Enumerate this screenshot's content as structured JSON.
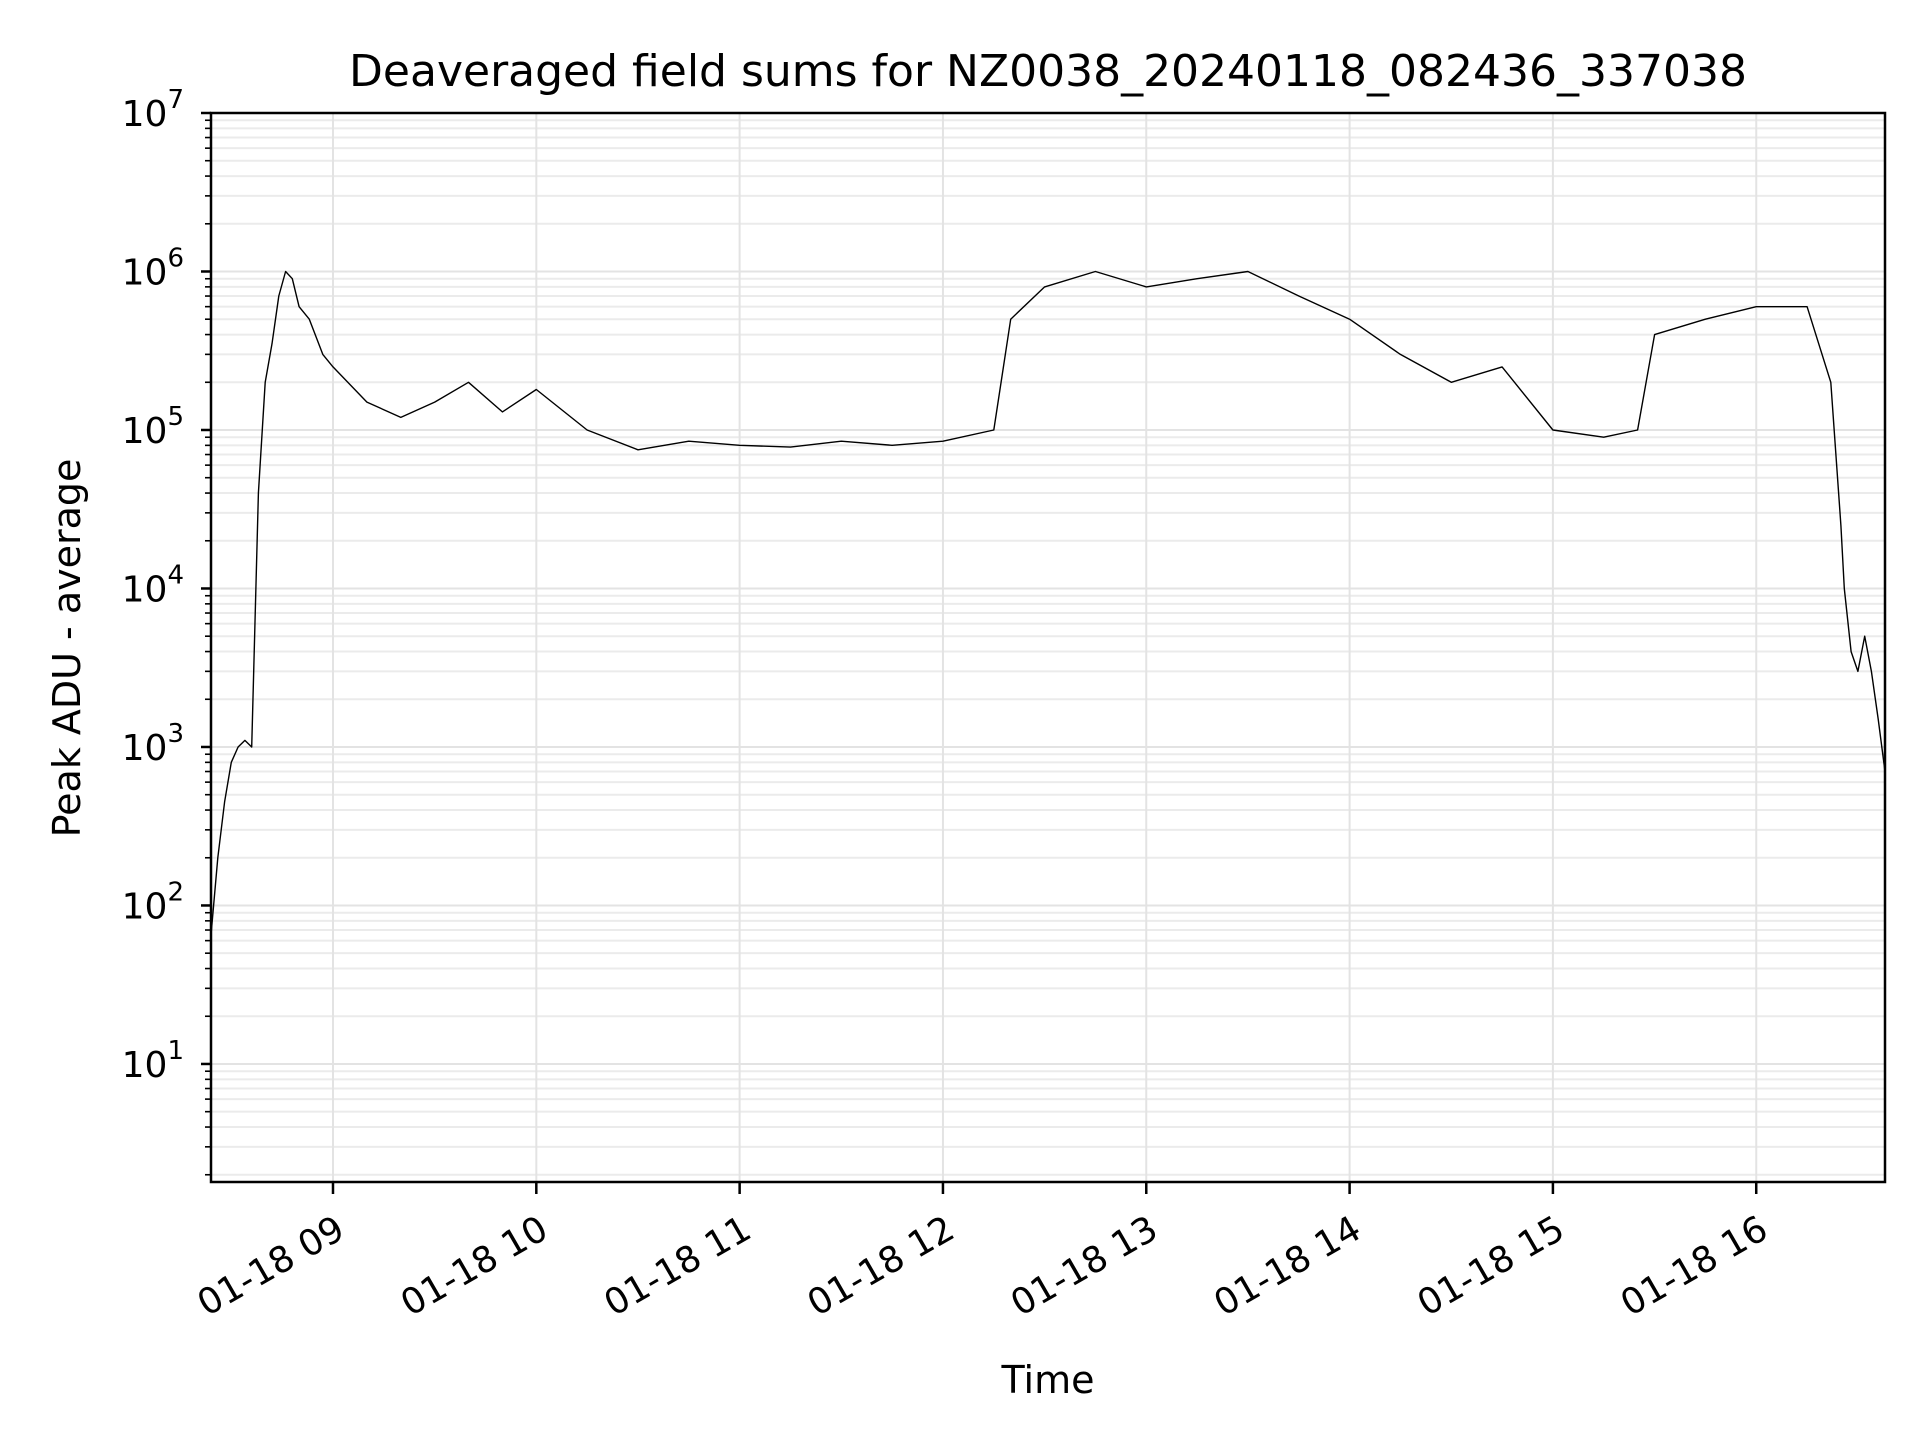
{
  "chart_data": {
    "type": "line",
    "title": "Deaveraged field sums for NZ0038_20240118_082436_337038",
    "xlabel": "Time",
    "ylabel": "Peak ADU - average",
    "yscale": "log",
    "ylim": [
      1.8,
      10000000
    ],
    "xlim": [
      "2024-01-18 08:24",
      "2024-01-18 16:38"
    ],
    "x_ticks": [
      "01-18 09",
      "01-18 10",
      "01-18 11",
      "01-18 12",
      "01-18 13",
      "01-18 14",
      "01-18 15",
      "01-18 16"
    ],
    "y_ticks": [
      {
        "base": "10",
        "exp": "1",
        "value": 10
      },
      {
        "base": "10",
        "exp": "2",
        "value": 100
      },
      {
        "base": "10",
        "exp": "3",
        "value": 1000
      },
      {
        "base": "10",
        "exp": "4",
        "value": 10000
      },
      {
        "base": "10",
        "exp": "5",
        "value": 100000
      },
      {
        "base": "10",
        "exp": "6",
        "value": 1000000
      },
      {
        "base": "10",
        "exp": "7",
        "value": 10000000
      }
    ],
    "grid": true,
    "line_color": "#000000",
    "series": [
      {
        "x": [
          "2024-01-18 08:24",
          "2024-01-18 08:26",
          "2024-01-18 08:28",
          "2024-01-18 08:30",
          "2024-01-18 08:32",
          "2024-01-18 08:34",
          "2024-01-18 08:36",
          "2024-01-18 08:38",
          "2024-01-18 08:40",
          "2024-01-18 08:42",
          "2024-01-18 08:44",
          "2024-01-18 08:46",
          "2024-01-18 08:48",
          "2024-01-18 08:50",
          "2024-01-18 08:53",
          "2024-01-18 08:57",
          "2024-01-18 09:00",
          "2024-01-18 09:10",
          "2024-01-18 09:20",
          "2024-01-18 09:30",
          "2024-01-18 09:40",
          "2024-01-18 09:50",
          "2024-01-18 10:00",
          "2024-01-18 10:15",
          "2024-01-18 10:30",
          "2024-01-18 10:45",
          "2024-01-18 11:00",
          "2024-01-18 11:15",
          "2024-01-18 11:30",
          "2024-01-18 11:45",
          "2024-01-18 12:00",
          "2024-01-18 12:15",
          "2024-01-18 12:20",
          "2024-01-18 12:30",
          "2024-01-18 12:45",
          "2024-01-18 13:00",
          "2024-01-18 13:15",
          "2024-01-18 13:30",
          "2024-01-18 13:45",
          "2024-01-18 14:00",
          "2024-01-18 14:15",
          "2024-01-18 14:30",
          "2024-01-18 14:45",
          "2024-01-18 15:00",
          "2024-01-18 15:15",
          "2024-01-18 15:25",
          "2024-01-18 15:30",
          "2024-01-18 15:45",
          "2024-01-18 16:00",
          "2024-01-18 16:15",
          "2024-01-18 16:22",
          "2024-01-18 16:25",
          "2024-01-18 16:26",
          "2024-01-18 16:28",
          "2024-01-18 16:30",
          "2024-01-18 16:32",
          "2024-01-18 16:34",
          "2024-01-18 16:36",
          "2024-01-18 16:38"
        ],
        "values": [
          65,
          200,
          450,
          800,
          1000,
          1100,
          1000,
          40000,
          200000,
          350000,
          700000,
          1000000,
          900000,
          600000,
          500000,
          300000,
          250000,
          150000,
          120000,
          150000,
          200000,
          130000,
          180000,
          100000,
          75000,
          85000,
          80000,
          78000,
          85000,
          80000,
          85000,
          100000,
          500000,
          800000,
          1000000,
          800000,
          900000,
          1000000,
          700000,
          500000,
          300000,
          200000,
          250000,
          100000,
          90000,
          100000,
          400000,
          500000,
          600000,
          600000,
          200000,
          25000,
          10000,
          4000,
          3000,
          5000,
          3000,
          1500,
          700
        ]
      }
    ]
  }
}
